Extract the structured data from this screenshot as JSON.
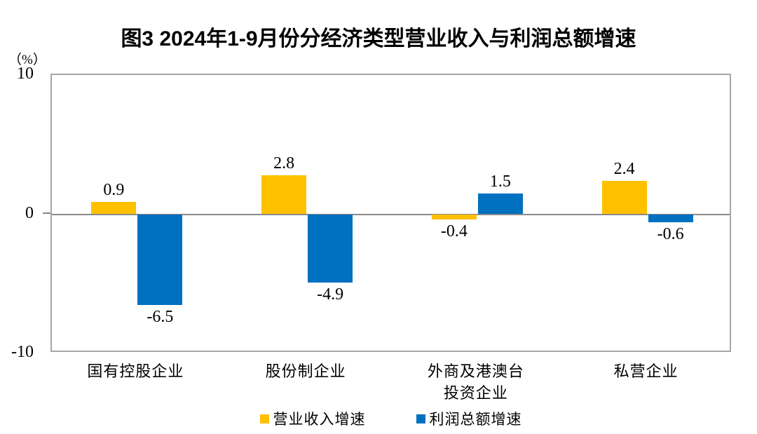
{
  "chart_data": {
    "type": "bar",
    "title": "图3 2024年1-9月份分经济类型营业收入与利润总额增速",
    "unit_label": "（%）",
    "categories": [
      "国有控股企业",
      "股份制企业",
      "外商及港澳台\n投资企业",
      "私营企业"
    ],
    "series": [
      {
        "name": "营业收入增速",
        "color": "#FFC000",
        "values": [
          0.9,
          2.8,
          -0.4,
          2.4
        ]
      },
      {
        "name": "利润总额增速",
        "color": "#0070C0",
        "values": [
          -6.5,
          -4.9,
          1.5,
          -0.6
        ]
      }
    ],
    "xlabel": "",
    "ylabel": "（%）",
    "ylim": [
      -10,
      10
    ],
    "yticks": [
      10,
      0,
      -10
    ],
    "grid": false,
    "legend_position": "bottom",
    "value_labels_shown": true,
    "axis_color": "#a6a6a6",
    "zero_line_color": "#8a8a8a",
    "text_color": "#000000"
  }
}
